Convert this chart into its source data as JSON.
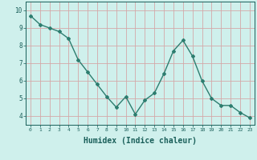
{
  "x": [
    0,
    1,
    2,
    3,
    4,
    5,
    6,
    7,
    8,
    9,
    10,
    11,
    12,
    13,
    14,
    15,
    16,
    17,
    18,
    19,
    20,
    21,
    22,
    23
  ],
  "y": [
    9.7,
    9.2,
    9.0,
    8.8,
    8.4,
    7.2,
    6.5,
    5.8,
    5.1,
    4.5,
    5.1,
    4.1,
    4.9,
    5.3,
    6.4,
    7.7,
    8.3,
    7.4,
    6.0,
    5.0,
    4.6,
    4.6,
    4.2,
    3.9
  ],
  "line_color": "#2d7d6f",
  "marker": "D",
  "marker_size": 2,
  "bg_color": "#cff0ec",
  "grid_color": "#d4a8a8",
  "xlabel": "Humidex (Indice chaleur)",
  "xlabel_fontsize": 7,
  "tick_label_color": "#1a5f5a",
  "xlabel_color": "#1a5f5a",
  "ylim": [
    3.5,
    10.5
  ],
  "xlim": [
    -0.5,
    23.5
  ],
  "yticks": [
    4,
    5,
    6,
    7,
    8,
    9,
    10
  ],
  "xticks": [
    0,
    1,
    2,
    3,
    4,
    5,
    6,
    7,
    8,
    9,
    10,
    11,
    12,
    13,
    14,
    15,
    16,
    17,
    18,
    19,
    20,
    21,
    22,
    23
  ]
}
